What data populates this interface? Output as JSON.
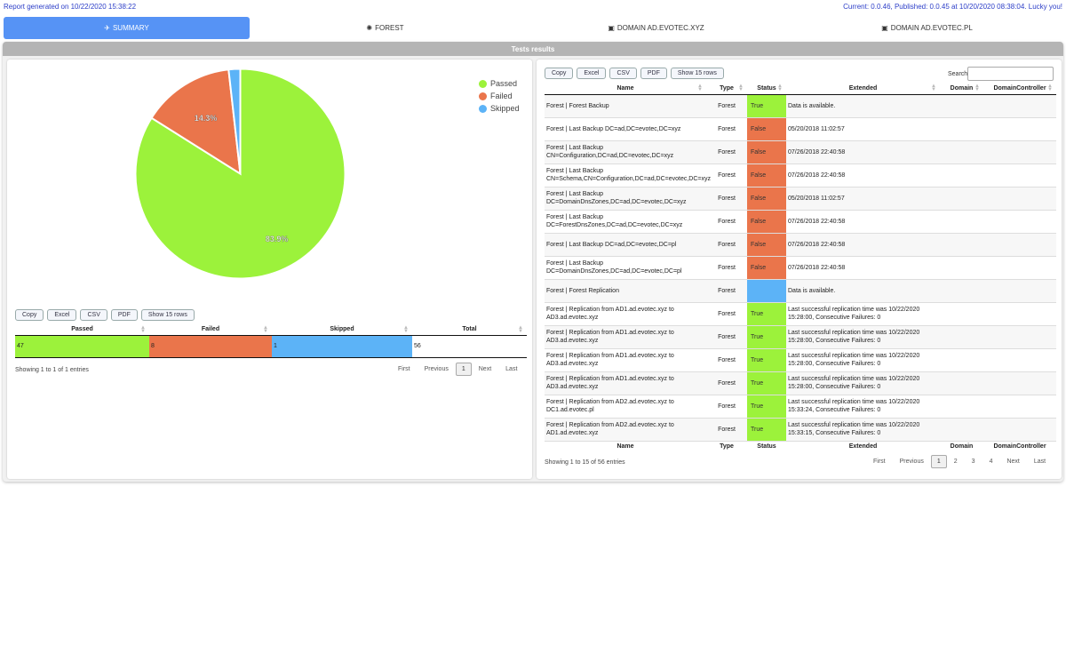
{
  "header": {
    "left": "Report generated on 10/22/2020 15:38:22",
    "right": "Current: 0.0.46, Published: 0.0.45 at 10/20/2020 08:38:04. Lucky you!"
  },
  "tabs": [
    {
      "label": "Summary",
      "icon": "plane-icon"
    },
    {
      "label": "Forest",
      "icon": "forest-icon"
    },
    {
      "label": "Domain ad.evotec.xyz",
      "icon": "domain-icon"
    },
    {
      "label": "Domain ad.evotec.pl",
      "icon": "domain-icon"
    }
  ],
  "panel_title": "Tests results",
  "colors": {
    "passed": "#9cf23b",
    "failed": "#ea754b",
    "skipped": "#5cb3f7",
    "accent": "#5693f5"
  },
  "chart_data": {
    "type": "pie",
    "categories": [
      "Passed",
      "Failed",
      "Skipped"
    ],
    "values": [
      47,
      8,
      1
    ],
    "percent_labels": [
      "83.9%",
      "14.3%",
      ""
    ],
    "legend": "top-right"
  },
  "buttons": {
    "copy": "Copy",
    "excel": "Excel",
    "csv": "CSV",
    "pdf": "PDF",
    "show": "Show 15 rows"
  },
  "summary_table": {
    "headers": [
      "Passed",
      "Failed",
      "Skipped",
      "Total"
    ],
    "row": [
      "47",
      "8",
      "1",
      "56"
    ],
    "info": "Showing 1 to 1 of 1 entries",
    "pager": {
      "first": "First",
      "previous": "Previous",
      "current": "1",
      "next": "Next",
      "last": "Last"
    }
  },
  "search_label": "Search:",
  "main_table": {
    "headers": [
      "Name",
      "Type",
      "Status",
      "Extended",
      "Domain",
      "DomainController"
    ],
    "rows": [
      {
        "name": "Forest | Forest Backup",
        "type": "Forest",
        "status": "True",
        "cls": "pass",
        "extended": "Data is available."
      },
      {
        "name": "Forest | Last Backup DC=ad,DC=evotec,DC=xyz",
        "type": "Forest",
        "status": "False",
        "cls": "fail",
        "extended": "05/20/2018 11:02:57"
      },
      {
        "name": "Forest | Last Backup CN=Configuration,DC=ad,DC=evotec,DC=xyz",
        "type": "Forest",
        "status": "False",
        "cls": "fail",
        "extended": "07/26/2018 22:40:58"
      },
      {
        "name": "Forest | Last Backup CN=Schema,CN=Configuration,DC=ad,DC=evotec,DC=xyz",
        "type": "Forest",
        "status": "False",
        "cls": "fail",
        "extended": "07/26/2018 22:40:58"
      },
      {
        "name": "Forest | Last Backup DC=DomainDnsZones,DC=ad,DC=evotec,DC=xyz",
        "type": "Forest",
        "status": "False",
        "cls": "fail",
        "extended": "05/20/2018 11:02:57"
      },
      {
        "name": "Forest | Last Backup DC=ForestDnsZones,DC=ad,DC=evotec,DC=xyz",
        "type": "Forest",
        "status": "False",
        "cls": "fail",
        "extended": "07/26/2018 22:40:58"
      },
      {
        "name": "Forest | Last Backup DC=ad,DC=evotec,DC=pl",
        "type": "Forest",
        "status": "False",
        "cls": "fail",
        "extended": "07/26/2018 22:40:58"
      },
      {
        "name": "Forest | Last Backup DC=DomainDnsZones,DC=ad,DC=evotec,DC=pl",
        "type": "Forest",
        "status": "False",
        "cls": "fail",
        "extended": "07/26/2018 22:40:58"
      },
      {
        "name": "Forest | Forest Replication",
        "type": "Forest",
        "status": "",
        "cls": "skip",
        "extended": "Data is available."
      },
      {
        "name": "Forest | Replication from AD1.ad.evotec.xyz to AD3.ad.evotec.xyz",
        "type": "Forest",
        "status": "True",
        "cls": "pass",
        "extended": "Last successful replication time was 10/22/2020 15:28:00, Consecutive Failures: 0"
      },
      {
        "name": "Forest | Replication from AD1.ad.evotec.xyz to AD3.ad.evotec.xyz",
        "type": "Forest",
        "status": "True",
        "cls": "pass",
        "extended": "Last successful replication time was 10/22/2020 15:28:00, Consecutive Failures: 0"
      },
      {
        "name": "Forest | Replication from AD1.ad.evotec.xyz to AD3.ad.evotec.xyz",
        "type": "Forest",
        "status": "True",
        "cls": "pass",
        "extended": "Last successful replication time was 10/22/2020 15:28:00, Consecutive Failures: 0"
      },
      {
        "name": "Forest | Replication from AD1.ad.evotec.xyz to AD3.ad.evotec.xyz",
        "type": "Forest",
        "status": "True",
        "cls": "pass",
        "extended": "Last successful replication time was 10/22/2020 15:28:00, Consecutive Failures: 0"
      },
      {
        "name": "Forest | Replication from AD2.ad.evotec.xyz to DC1.ad.evotec.pl",
        "type": "Forest",
        "status": "True",
        "cls": "pass",
        "extended": "Last successful replication time was 10/22/2020 15:33:24, Consecutive Failures: 0"
      },
      {
        "name": "Forest | Replication from AD2.ad.evotec.xyz to AD1.ad.evotec.xyz",
        "type": "Forest",
        "status": "True",
        "cls": "pass",
        "extended": "Last successful replication time was 10/22/2020 15:33:15, Consecutive Failures: 0"
      }
    ],
    "info": "Showing 1 to 15 of 56 entries",
    "pager": {
      "first": "First",
      "previous": "Previous",
      "pages": [
        "1",
        "2",
        "3",
        "4"
      ],
      "next": "Next",
      "last": "Last"
    }
  }
}
